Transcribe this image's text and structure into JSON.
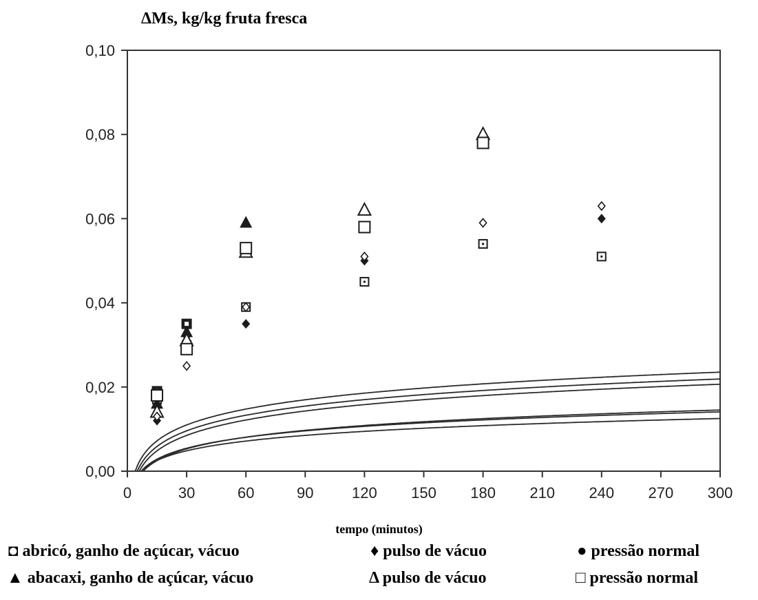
{
  "chart_data": {
    "type": "scatter",
    "title": "ΔMs, kg/kg fruta fresca",
    "xlabel": "tempo (minutos)",
    "ylabel": "ΔMs, kg/kg fruta fresca",
    "xlim": [
      0,
      300
    ],
    "ylim": [
      0,
      0.1
    ],
    "x_ticks": [
      "0",
      "30",
      "60",
      "90",
      "120",
      "150",
      "180",
      "210",
      "240",
      "270",
      "300"
    ],
    "y_ticks": [
      "0,00",
      "0,02",
      "0,04",
      "0,06",
      "0,08",
      "0,10"
    ],
    "grid": false,
    "legend_placement": "bottom",
    "series": [
      {
        "name": "abricó, ganho de açúcar, vácuo",
        "marker": "filled-square-small",
        "points": [
          [
            15,
            0.019
          ],
          [
            30,
            0.035
          ],
          [
            60,
            0.053
          ]
        ]
      },
      {
        "name": "pulso de vácuo",
        "marker": "filled-diamond",
        "points": [
          [
            15,
            0.012
          ],
          [
            30,
            0.032
          ],
          [
            60,
            0.035
          ],
          [
            120,
            0.05
          ],
          [
            180,
            0.059
          ],
          [
            240,
            0.06
          ]
        ]
      },
      {
        "name": "pressão normal",
        "marker": "small-square",
        "points": [
          [
            15,
            0.017
          ],
          [
            30,
            0.03
          ],
          [
            60,
            0.039
          ],
          [
            120,
            0.045
          ],
          [
            180,
            0.054
          ],
          [
            240,
            0.051
          ]
        ]
      },
      {
        "name": "abacaxi, ganho de açúcar, vácuo",
        "marker": "filled-triangle",
        "points": [
          [
            15,
            0.016
          ],
          [
            30,
            0.033
          ],
          [
            60,
            0.059
          ]
        ]
      },
      {
        "name": "pulso de vácuo",
        "marker": "open-triangle",
        "points": [
          [
            15,
            0.014
          ],
          [
            30,
            0.031
          ],
          [
            60,
            0.052
          ],
          [
            120,
            0.062
          ],
          [
            180,
            0.08
          ]
        ]
      },
      {
        "name": "pressão normal",
        "marker": "open-square",
        "points": [
          [
            15,
            0.018
          ],
          [
            30,
            0.029
          ],
          [
            60,
            0.053
          ],
          [
            120,
            0.058
          ],
          [
            180,
            0.078
          ]
        ]
      },
      {
        "name": "",
        "marker": "open-diamond",
        "points": [
          [
            15,
            0.013
          ],
          [
            30,
            0.025
          ],
          [
            60,
            0.039
          ],
          [
            120,
            0.051
          ],
          [
            180,
            0.059
          ],
          [
            240,
            0.063
          ]
        ]
      }
    ],
    "curves": [
      {
        "t0": 4,
        "k": 0.00545
      },
      {
        "t0": 5,
        "k": 0.00535
      },
      {
        "t0": 6,
        "k": 0.00528
      },
      {
        "t0": 8,
        "k": 0.00401
      },
      {
        "t0": 7,
        "k": 0.00375
      },
      {
        "t0": 7,
        "k": 0.00333
      }
    ]
  },
  "legend": {
    "row1": [
      {
        "symbol": "◘",
        "text": "abricó, ganho de açúcar, vácuo"
      },
      {
        "symbol": "♦",
        "text": "pulso de vácuo"
      },
      {
        "symbol": "●",
        "text": "pressão normal"
      }
    ],
    "row2": [
      {
        "symbol": "▲",
        "text": "abacaxi, ganho de açúcar, vácuo"
      },
      {
        "symbol": "Δ",
        "text": "pulso de vácuo"
      },
      {
        "symbol": "□",
        "text": "pressão normal"
      }
    ]
  }
}
